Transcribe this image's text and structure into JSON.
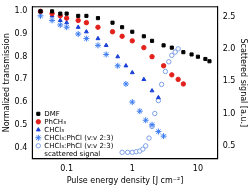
{
  "chart_data": {
    "type": "scatter",
    "x_label": "Pulse energy density [J cm⁻²]",
    "y_label": "Normalized transmission",
    "y2_label": "Scattered signal [a.u.]",
    "log": "x",
    "grid": false,
    "legend": "lower left",
    "xlim": [
      0.03,
      20
    ],
    "xticks": [
      0.1,
      1,
      10
    ],
    "ylim": [
      0.35,
      1.02
    ],
    "yticks": [
      0.4,
      0.5,
      0.6,
      0.7,
      0.8,
      0.9,
      {
        "value": 1,
        "label": "1.0"
      }
    ],
    "y2lim": [
      0.3,
      2.65
    ],
    "y2ticks": [
      0.5,
      {
        "value": 1,
        "label": "1.0"
      },
      1.5,
      {
        "value": 2,
        "label": "2.0"
      },
      2.5
    ],
    "annotations": [
      "scattered signal"
    ],
    "series": [
      {
        "name": "DMF",
        "color": "#000000",
        "marker": "square",
        "x": [
          0.04,
          0.06,
          0.08,
          0.1,
          0.15,
          0.2,
          0.3,
          0.5,
          0.7,
          1,
          1.5,
          2,
          3,
          4,
          6,
          8,
          10,
          13,
          15
        ],
        "values": [
          1.0,
          1.0,
          0.99,
          0.99,
          0.98,
          0.98,
          0.97,
          0.95,
          0.93,
          0.91,
          0.89,
          0.87,
          0.85,
          0.84,
          0.82,
          0.81,
          0.8,
          0.79,
          0.78
        ]
      },
      {
        "name": "PhCH₃",
        "color": "#e3211c",
        "marker": "circle",
        "x": [
          0.04,
          0.06,
          0.08,
          0.1,
          0.15,
          0.2,
          0.3,
          0.5,
          0.7,
          1,
          1.5,
          2,
          3,
          4,
          5,
          6
        ],
        "values": [
          1.0,
          0.99,
          0.98,
          0.97,
          0.96,
          0.95,
          0.93,
          0.91,
          0.89,
          0.87,
          0.84,
          0.8,
          0.76,
          0.72,
          0.7,
          0.68
        ]
      },
      {
        "name": "CHCl₃",
        "color": "#1a3fd6",
        "marker": "triangle",
        "x": [
          0.04,
          0.06,
          0.08,
          0.1,
          0.15,
          0.2,
          0.3,
          0.4,
          0.6,
          0.8,
          1,
          1.5,
          2,
          2.5
        ],
        "values": [
          1.0,
          0.98,
          0.96,
          0.95,
          0.93,
          0.91,
          0.88,
          0.85,
          0.8,
          0.76,
          0.73,
          0.7,
          0.65,
          0.62
        ]
      },
      {
        "name": "CHCl₃:PhCl (v:v 2:3)",
        "color": "#3b7cf0",
        "marker": "star",
        "x": [
          0.04,
          0.06,
          0.08,
          0.1,
          0.15,
          0.2,
          0.3,
          0.4,
          0.6,
          0.8,
          1,
          1.3,
          1.6,
          2,
          2.5,
          3
        ],
        "values": [
          0.98,
          0.96,
          0.94,
          0.93,
          0.9,
          0.88,
          0.85,
          0.81,
          0.76,
          0.68,
          0.6,
          0.56,
          0.52,
          0.5,
          0.47,
          0.45
        ]
      },
      {
        "name": "CHCl₃:PhCl (v:v 2:3)",
        "color": "#7da0e8",
        "marker": "open_circle",
        "axis": "y2",
        "x": [
          0.7,
          0.85,
          1,
          1.15,
          1.3,
          1.45,
          1.6,
          1.8,
          2,
          2.2,
          2.5,
          2.8,
          3.2,
          3.6,
          4,
          4.5,
          5
        ],
        "values": [
          0.4,
          0.4,
          0.4,
          0.41,
          0.42,
          0.45,
          0.5,
          0.62,
          0.8,
          1.0,
          1.2,
          1.45,
          1.65,
          1.8,
          1.9,
          1.95,
          2.0
        ]
      }
    ]
  }
}
